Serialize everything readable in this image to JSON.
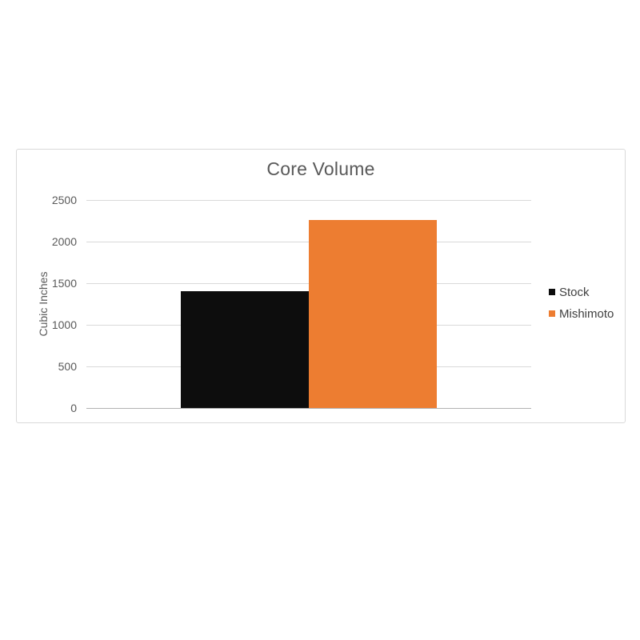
{
  "page": {
    "background": "#ffffff"
  },
  "chart_data": {
    "type": "bar",
    "title": "Core Volume",
    "xlabel": "",
    "ylabel": "Cubic Inches",
    "categories": [
      ""
    ],
    "series": [
      {
        "name": "Stock",
        "color": "#0d0d0d",
        "values": [
          1400
        ]
      },
      {
        "name": "Mishimoto",
        "color": "#ED7D31",
        "values": [
          2260
        ]
      }
    ],
    "ylim": [
      0,
      2500
    ],
    "yticks": [
      0,
      500,
      1000,
      1500,
      2000,
      2500
    ],
    "grid": true,
    "legend_position": "right",
    "colors": {
      "grid_line": "#d9d9d9",
      "axis_line": "#b3b3b3",
      "text": "#595959",
      "border": "#d9d9d9"
    }
  }
}
